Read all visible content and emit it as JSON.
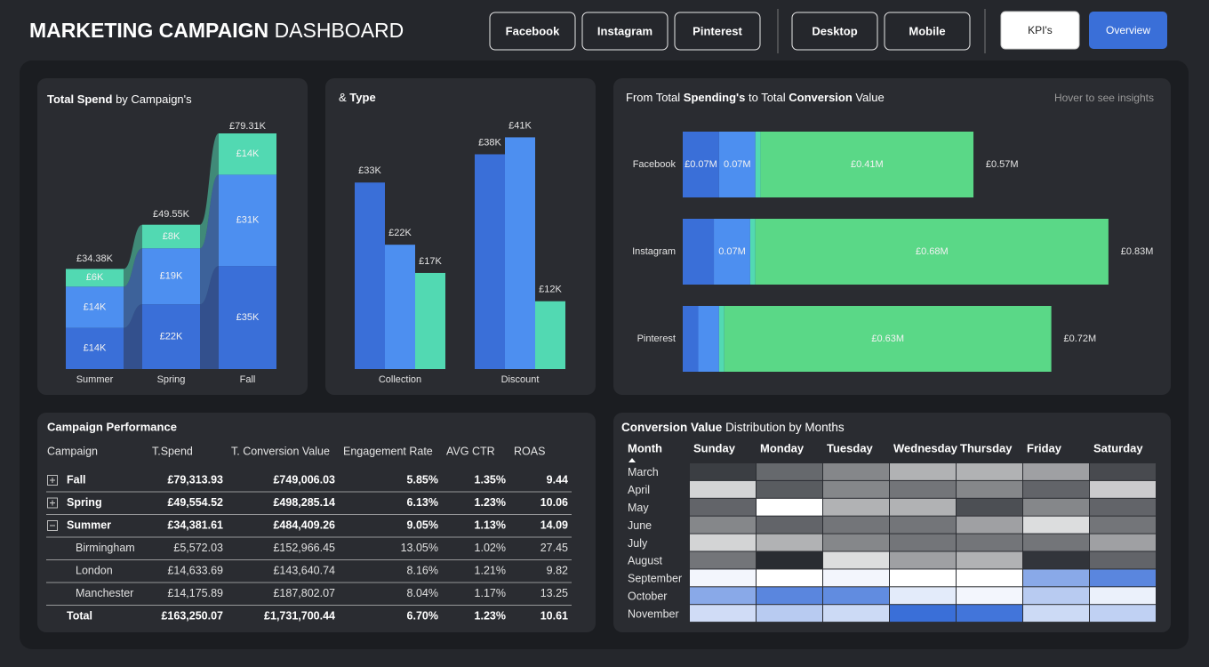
{
  "header": {
    "title": [
      "MARKETING CAMPAIGN",
      "DASHBOARD"
    ],
    "title_bold": [
      true,
      false
    ],
    "filters": [
      "Facebook",
      "Instagram",
      "Pinterest",
      "Desktop",
      "Mobile"
    ],
    "nav": [
      "KPI's",
      "Overview"
    ]
  },
  "spend_by_campaign": {
    "type": "bar",
    "title": [
      "Total Spend",
      "by Campaign's"
    ],
    "title_bold": [
      true,
      false
    ],
    "categories": [
      "Summer",
      "Spring",
      "Fall"
    ],
    "series": [
      {
        "color": "#3a6fd8",
        "values": [
          14,
          22,
          35
        ],
        "value_labels": [
          "£14K",
          "£22K",
          "£35K"
        ]
      },
      {
        "color": "#4d8ff0",
        "values": [
          14,
          19,
          31
        ],
        "value_labels": [
          "£14K",
          "£19K",
          "£31K"
        ]
      },
      {
        "color": "#52d9b2",
        "values": [
          6,
          8,
          14
        ],
        "value_labels": [
          "£6K",
          "£8K",
          "£14K"
        ]
      }
    ],
    "totals": [
      34.38,
      49.55,
      79.31
    ],
    "total_labels": [
      "£34.38K",
      "£49.55K",
      "£79.31K"
    ],
    "ylim": [
      0,
      80
    ]
  },
  "spend_by_type": {
    "type": "bar",
    "title": [
      "&",
      "Type"
    ],
    "title_bold": [
      false,
      true
    ],
    "categories": [
      "Collection",
      "Discount"
    ],
    "series": [
      {
        "color": "#3a6fd8",
        "values": [
          33,
          38
        ],
        "value_labels": [
          "£33K",
          "£38K"
        ]
      },
      {
        "color": "#4d8ff0",
        "values": [
          22,
          41
        ],
        "value_labels": [
          "£22K",
          "£41K"
        ]
      },
      {
        "color": "#52d9b2",
        "values": [
          17,
          12
        ],
        "value_labels": [
          "£17K",
          "£12K"
        ]
      }
    ],
    "ylim": [
      0,
      45
    ]
  },
  "spend_to_conversion": {
    "type": "bar",
    "orientation": "horizontal",
    "title": [
      "From Total",
      "Spending's",
      "to Total",
      "Conversion",
      "Value"
    ],
    "title_bold": [
      false,
      true,
      false,
      true,
      false
    ],
    "hint": "Hover to see insights",
    "categories": [
      "Facebook",
      "Instagram",
      "Pinterest"
    ],
    "series": [
      {
        "color": "#3a6fd8",
        "values": [
          0.07,
          0.06,
          0.03
        ],
        "value_labels": [
          "£0.07M",
          null,
          null
        ]
      },
      {
        "color": "#4d8ff0",
        "values": [
          0.07,
          0.07,
          0.04
        ],
        "value_labels": [
          "0.07M",
          "0.07M",
          null
        ]
      },
      {
        "color": "#52d9b2",
        "values": [
          0.01,
          0.01,
          0.01
        ],
        "value_labels": [
          null,
          null,
          null
        ]
      },
      {
        "color": "#5ad887",
        "values": [
          0.41,
          0.68,
          0.63
        ],
        "value_labels": [
          "£0.41M",
          "£0.68M",
          "£0.63M"
        ]
      }
    ],
    "totals": [
      0.57,
      0.83,
      0.72
    ],
    "total_labels": [
      "£0.57M",
      "£0.83M",
      "£0.72M"
    ],
    "xlim": [
      0,
      0.9
    ]
  },
  "performance": {
    "title": "Campaign Performance",
    "columns": [
      "Campaign",
      "T.Spend",
      "T. Conversion Value",
      "Engagement Rate",
      "AVG CTR",
      "ROAS"
    ],
    "rows": [
      {
        "kind": "group",
        "cells": [
          "Fall",
          "£79,313.93",
          "£749,006.03",
          "5.85%",
          "1.35%",
          "9.44"
        ]
      },
      {
        "kind": "group",
        "cells": [
          "Spring",
          "£49,554.52",
          "£498,285.14",
          "6.13%",
          "1.23%",
          "10.06"
        ]
      },
      {
        "kind": "group-open",
        "cells": [
          "Summer",
          "£34,381.61",
          "£484,409.26",
          "9.05%",
          "1.13%",
          "14.09"
        ]
      },
      {
        "kind": "child",
        "cells": [
          "Birmingham",
          "£5,572.03",
          "£152,966.45",
          "13.05%",
          "1.02%",
          "27.45"
        ]
      },
      {
        "kind": "child",
        "cells": [
          "London",
          "£14,633.69",
          "£143,640.74",
          "8.16%",
          "1.21%",
          "9.82"
        ]
      },
      {
        "kind": "child",
        "cells": [
          "Manchester",
          "£14,175.89",
          "£187,802.07",
          "8.04%",
          "1.17%",
          "13.25"
        ]
      },
      {
        "kind": "total",
        "cells": [
          "Total",
          "£163,250.07",
          "£1,731,700.44",
          "6.70%",
          "1.23%",
          "10.61"
        ]
      }
    ]
  },
  "heatmap": {
    "type": "heatmap",
    "title": [
      "Conversion Value",
      "Distribution by Months"
    ],
    "title_bold": [
      true,
      false
    ],
    "row_header": "Month",
    "columns": [
      "Sunday",
      "Monday",
      "Tuesday",
      "Wednesday",
      "Thursday",
      "Friday",
      "Saturday"
    ],
    "rows": [
      "March",
      "April",
      "May",
      "June",
      "July",
      "August",
      "September",
      "October",
      "November"
    ],
    "values": [
      [
        5,
        15,
        22,
        32,
        32,
        28,
        8
      ],
      [
        40,
        12,
        22,
        18,
        22,
        14,
        38
      ],
      [
        14,
        50,
        32,
        32,
        9,
        22,
        14
      ],
      [
        22,
        14,
        18,
        18,
        28,
        42,
        18
      ],
      [
        40,
        32,
        22,
        18,
        18,
        18,
        28
      ],
      [
        18,
        1,
        42,
        28,
        32,
        3,
        14
      ],
      [
        53,
        50,
        53,
        50,
        50,
        80,
        92
      ],
      [
        80,
        92,
        90,
        57,
        53,
        68,
        55
      ],
      [
        62,
        68,
        63,
        100,
        98,
        63,
        66
      ]
    ],
    "vlim": [
      0,
      100
    ],
    "colors": [
      "#25282e",
      "#ffffff",
      "#3a6fd8"
    ]
  }
}
